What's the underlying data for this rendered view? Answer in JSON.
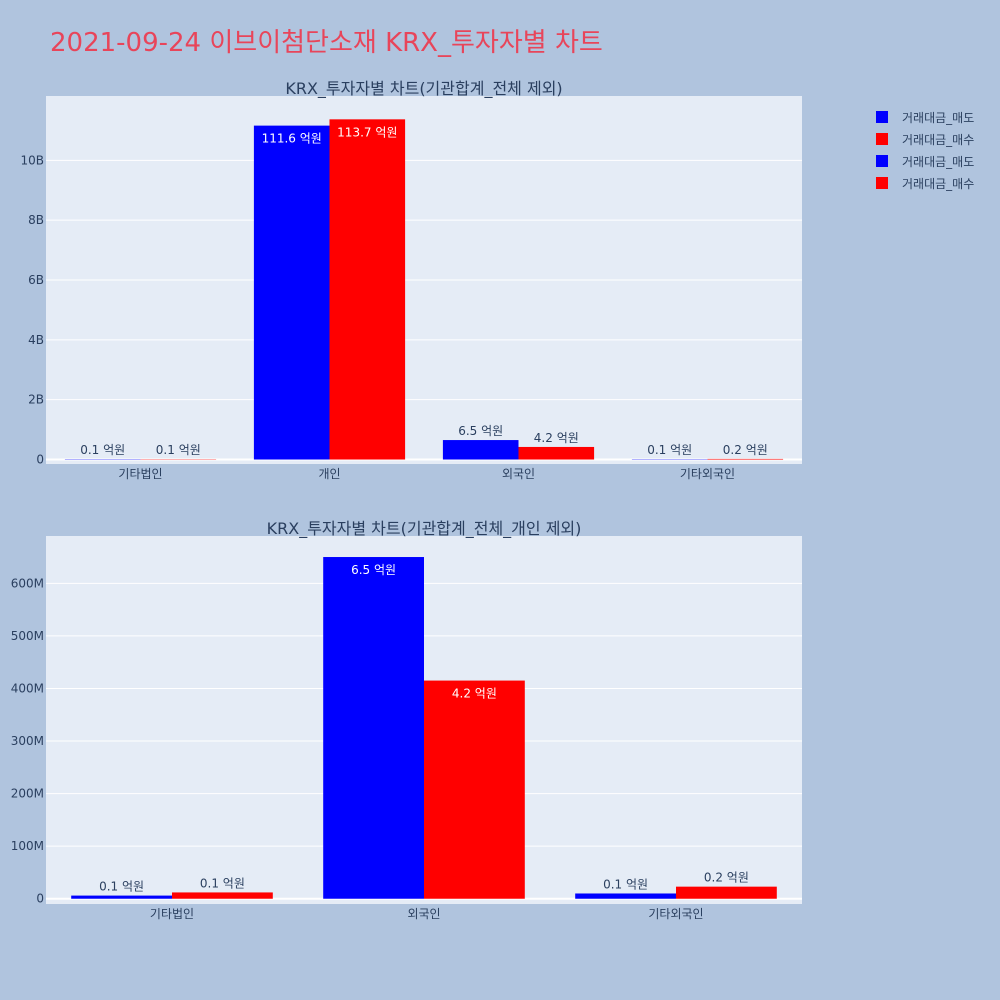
{
  "page_title": "2021-09-24 이브이첨단소재 KRX_투자자별 차트",
  "colors": {
    "sell": "#0000ff",
    "buy": "#ff0000",
    "plot_bg": "#e5ecf6",
    "page_bg": "#b0c4de"
  },
  "legend": [
    {
      "label": "거래대금_매도",
      "color": "#0000ff"
    },
    {
      "label": "거래대금_매수",
      "color": "#ff0000"
    },
    {
      "label": "거래대금_매도",
      "color": "#0000ff"
    },
    {
      "label": "거래대금_매수",
      "color": "#ff0000"
    }
  ],
  "chart_data": [
    {
      "type": "bar",
      "title": "KRX_투자자별 차트(기관합계_전체 제외)",
      "categories": [
        "기타법인",
        "개인",
        "외국인",
        "기타외국인"
      ],
      "series": [
        {
          "name": "거래대금_매도",
          "color": "#0000ff",
          "values": [
            10000000,
            11160000000,
            650000000,
            10000000
          ],
          "labels": [
            "0.1 억원",
            "111.6 억원",
            "6.5 억원",
            "0.1 억원"
          ]
        },
        {
          "name": "거래대금_매수",
          "color": "#ff0000",
          "values": [
            10000000,
            11370000000,
            420000000,
            20000000
          ],
          "labels": [
            "0.1 억원",
            "113.7 억원",
            "4.2 억원",
            "0.2 억원"
          ]
        }
      ],
      "yticks": [
        0,
        2000000000,
        4000000000,
        6000000000,
        8000000000,
        10000000000
      ],
      "ytick_labels": [
        "0",
        "2B",
        "4B",
        "6B",
        "8B",
        "10B"
      ],
      "ylim": [
        -150000000,
        12150000000
      ],
      "grid": true
    },
    {
      "type": "bar",
      "title": "KRX_투자자별 차트(기관합계_전체_개인 제외)",
      "categories": [
        "기타법인",
        "외국인",
        "기타외국인"
      ],
      "series": [
        {
          "name": "거래대금_매도",
          "color": "#0000ff",
          "values": [
            6000000,
            650000000,
            10000000
          ],
          "labels": [
            "0.1 억원",
            "6.5 억원",
            "0.1 억원"
          ]
        },
        {
          "name": "거래대금_매수",
          "color": "#ff0000",
          "values": [
            12000000,
            415000000,
            23000000
          ],
          "labels": [
            "0.1 억원",
            "4.2 억원",
            "0.2 억원"
          ]
        }
      ],
      "yticks": [
        0,
        100000000,
        200000000,
        300000000,
        400000000,
        500000000,
        600000000
      ],
      "ytick_labels": [
        "0",
        "100M",
        "200M",
        "300M",
        "400M",
        "500M",
        "600M"
      ],
      "ylim": [
        -10000000,
        690000000
      ],
      "grid": true
    }
  ]
}
